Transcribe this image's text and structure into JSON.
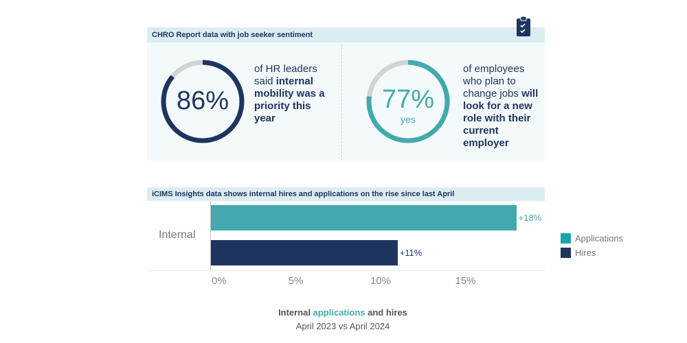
{
  "section1": {
    "title": "CHRO Report data with job seeker sentiment",
    "icon": "clipboard-check-icon"
  },
  "stat1": {
    "value": "86%",
    "percent": 86,
    "text_plain": "of HR leaders said ",
    "text_bold": "internal mobility was a priority this year",
    "color": "#1e3560"
  },
  "stat2": {
    "value": "77%",
    "percent": 77,
    "sub": "yes",
    "text_plain": "of employees who plan to change jobs ",
    "text_bold": "will look for a new role with their current employer",
    "color": "#44a9ae"
  },
  "section2": {
    "title": "iCIMS Insights data shows internal hires and applications on the rise since last April"
  },
  "chart_data": {
    "type": "bar",
    "orientation": "horizontal",
    "categories": [
      "Internal"
    ],
    "series": [
      {
        "name": "Applications",
        "values": [
          18
        ],
        "label": "+18%",
        "color": "#44a9ae"
      },
      {
        "name": "Hires",
        "values": [
          11
        ],
        "label": "+11%",
        "color": "#1e3560"
      }
    ],
    "xlim": [
      0,
      19
    ],
    "xticks": [
      "0%",
      "5%",
      "10%",
      "15%"
    ],
    "xtick_values": [
      0,
      5,
      10,
      15
    ],
    "legend": "right",
    "title_parts": [
      "Internal ",
      "applications",
      " and hires"
    ],
    "subtitle": "April 2023 vs April 2024"
  }
}
